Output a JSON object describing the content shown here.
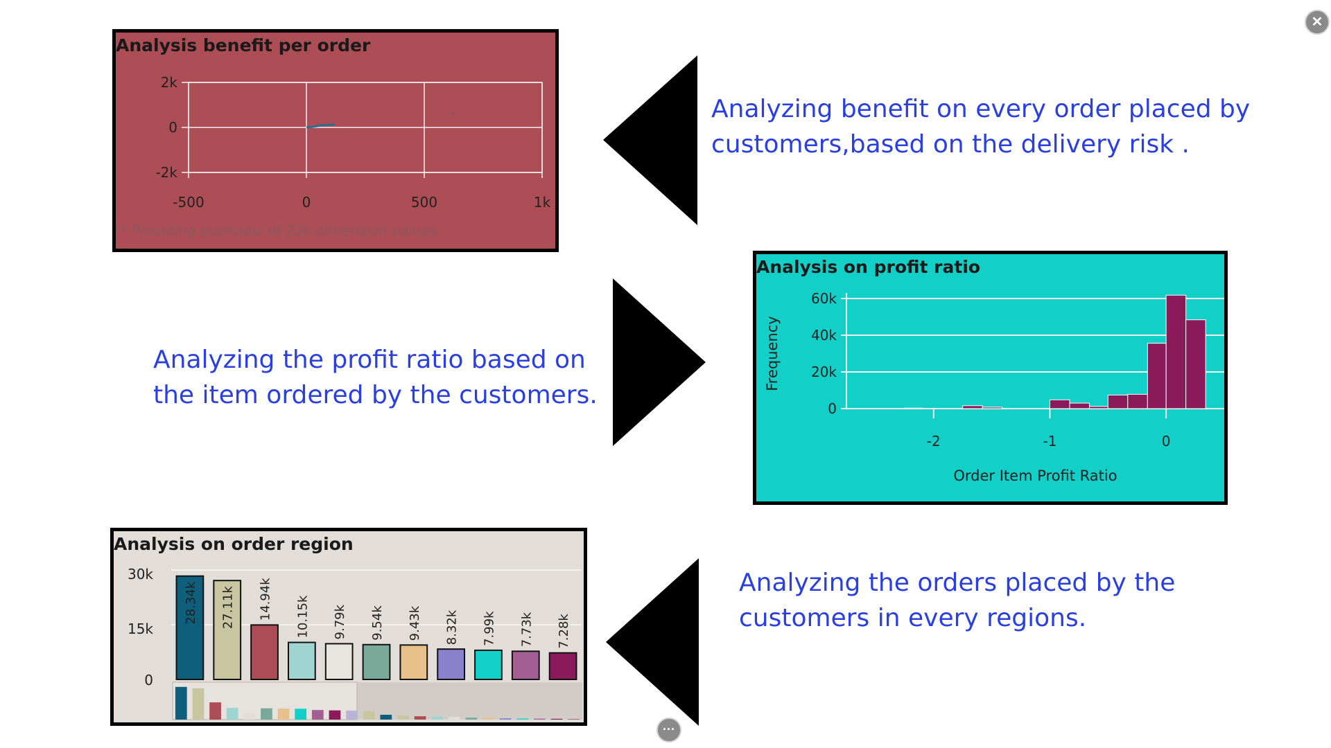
{
  "colors": {
    "panel1_bg": "#ad4d56",
    "panel2_bg": "#12cfc8",
    "panel3_bg": "#e2ddd8",
    "caption": "#2a3fe0",
    "hist_bar": "#8a1a5a"
  },
  "icons": {
    "close": "close-icon",
    "more": "more-icon"
  },
  "close_label": "✕",
  "more_label": "···",
  "captions": {
    "benefit": [
      "Analyzing benefit on every order placed by",
      "customers,based on the delivery risk ."
    ],
    "profit": [
      "Analyzing the profit ratio based on",
      "the item ordered by the customers."
    ],
    "region": [
      "Analyzing the orders placed by the",
      "customers in every regions."
    ]
  },
  "chart_data": [
    {
      "type": "line",
      "title": "Analysis benefit per order",
      "footnote": "* Providing overview of 22k dimension values.",
      "xlim": [
        -500,
        1000
      ],
      "ylim": [
        -2000,
        2000
      ],
      "x_ticks": [
        "-500",
        "0",
        "500",
        "1k"
      ],
      "y_ticks": [
        "2k",
        "0",
        "-2k"
      ],
      "x_tick_values": [
        -500,
        0,
        500,
        1000
      ],
      "y_tick_values": [
        2000,
        0,
        -2000
      ],
      "grid": true,
      "series": [
        {
          "x": [
            0,
            20,
            40,
            60,
            80,
            100,
            120
          ],
          "y": [
            0,
            20,
            50,
            80,
            100,
            120,
            140
          ]
        }
      ],
      "stray_points": [
        {
          "x": 620,
          "y": 600
        }
      ]
    },
    {
      "type": "bar",
      "title": "Analysis on profit ratio",
      "xlabel": "Order Item Profit Ratio",
      "ylabel": "Frequency",
      "xlim": [
        -2.75,
        0.5
      ],
      "ylim": [
        0,
        60000
      ],
      "x_ticks": [
        "-2",
        "-1",
        "0"
      ],
      "x_tick_values": [
        -2,
        -1,
        0
      ],
      "y_ticks": [
        "60k",
        "40k",
        "20k",
        "0"
      ],
      "y_tick_values": [
        60000,
        40000,
        20000,
        0
      ],
      "grid": true,
      "bins": [
        {
          "x0": -2.25,
          "x1": -2.1,
          "value": 300
        },
        {
          "x0": -1.75,
          "x1": -1.58,
          "value": 1600
        },
        {
          "x0": -1.58,
          "x1": -1.41,
          "value": 800
        },
        {
          "x0": -1.0,
          "x1": -0.83,
          "value": 4800
        },
        {
          "x0": -0.83,
          "x1": -0.66,
          "value": 3000
        },
        {
          "x0": -0.66,
          "x1": -0.5,
          "value": 1200
        },
        {
          "x0": -0.5,
          "x1": -0.33,
          "value": 7400
        },
        {
          "x0": -0.33,
          "x1": -0.16,
          "value": 7800
        },
        {
          "x0": -0.16,
          "x1": 0.0,
          "value": 35600
        },
        {
          "x0": 0.0,
          "x1": 0.17,
          "value": 61800
        },
        {
          "x0": 0.17,
          "x1": 0.34,
          "value": 48400
        }
      ]
    },
    {
      "type": "bar",
      "title": "Analysis on order region",
      "ylim": [
        0,
        30000
      ],
      "y_ticks": [
        "30k",
        "15k",
        "0"
      ],
      "y_tick_values": [
        30000,
        15000,
        0
      ],
      "values": [
        28340,
        27110,
        14940,
        10150,
        9790,
        9540,
        9430,
        8320,
        7990,
        7730,
        7280
      ],
      "labels": [
        "28.34k",
        "27.11k",
        "14.94k",
        "10.15k",
        "9.79k",
        "9.54k",
        "9.43k",
        "8.32k",
        "7.99k",
        "7.73k",
        "7.28k"
      ],
      "bar_colors": [
        "#0e5f7c",
        "#c8c6a0",
        "#ad4d56",
        "#9fd4d0",
        "#e8e4e0",
        "#7aa99a",
        "#e8c08a",
        "#8a82cc",
        "#12cfc8",
        "#a35f93",
        "#8a1a5a"
      ],
      "overview_values": [
        28340,
        27110,
        14940,
        10150,
        6000,
        9790,
        9540,
        9430,
        8320,
        7990,
        7730,
        7280,
        4200,
        3500,
        2900,
        2600,
        2400,
        1700,
        1300,
        1100,
        900,
        800,
        700,
        500
      ],
      "overview_colors": [
        "#0e5f7c",
        "#c8c6a0",
        "#ad4d56",
        "#9fd4d0",
        "#e2ddd8",
        "#7aa99a",
        "#e8c08a",
        "#12cfc8",
        "#a35f93",
        "#8a1a5a",
        "#b9b3d9",
        "#c8c6a0",
        "#0e5f7c",
        "#c8c6a0",
        "#ad4d56",
        "#9fd4d0",
        "#e2ddd8",
        "#7aa99a",
        "#e8c08a",
        "#8a82cc",
        "#12cfc8",
        "#a35f93",
        "#8a1a5a",
        "#ad4d56"
      ]
    }
  ]
}
